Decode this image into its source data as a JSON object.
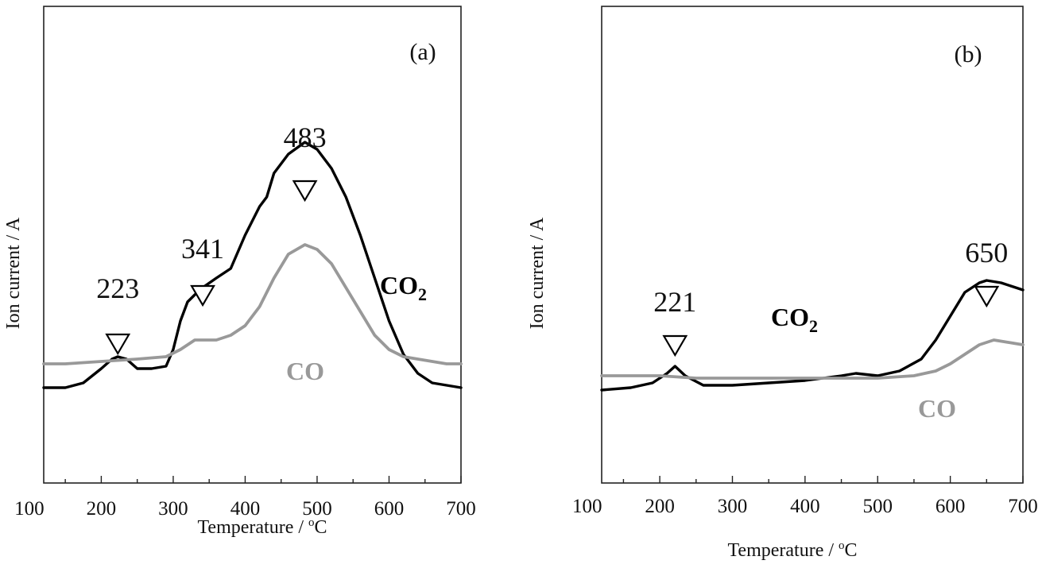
{
  "chart_data": [
    {
      "panel": "(a)",
      "type": "line",
      "xlabel": "Temperature / ",
      "xlabel_sup": "o",
      "xlabel_unit": "C",
      "ylabel": "Ion current / A",
      "xlim": [
        120,
        700
      ],
      "ylim": [
        0,
        1
      ],
      "xticks": [
        100,
        200,
        300,
        400,
        500,
        600,
        700
      ],
      "grid": false,
      "series": [
        {
          "name": "CO2",
          "color": "#000000",
          "x": [
            120,
            150,
            175,
            200,
            215,
            223,
            235,
            250,
            270,
            290,
            300,
            310,
            320,
            330,
            341,
            360,
            380,
            400,
            420,
            430,
            440,
            460,
            483,
            500,
            520,
            540,
            560,
            580,
            600,
            620,
            640,
            660,
            680,
            700
          ],
          "y": [
            0.2,
            0.2,
            0.21,
            0.24,
            0.26,
            0.265,
            0.26,
            0.24,
            0.24,
            0.245,
            0.28,
            0.34,
            0.38,
            0.395,
            0.41,
            0.43,
            0.45,
            0.52,
            0.58,
            0.6,
            0.65,
            0.69,
            0.715,
            0.7,
            0.66,
            0.6,
            0.52,
            0.43,
            0.34,
            0.27,
            0.23,
            0.21,
            0.205,
            0.2
          ]
        },
        {
          "name": "CO",
          "color": "#999999",
          "x": [
            120,
            150,
            200,
            250,
            290,
            310,
            330,
            360,
            380,
            400,
            420,
            440,
            460,
            483,
            500,
            520,
            540,
            560,
            580,
            600,
            620,
            640,
            660,
            680,
            700
          ],
          "y": [
            0.25,
            0.25,
            0.255,
            0.26,
            0.265,
            0.28,
            0.3,
            0.3,
            0.31,
            0.33,
            0.37,
            0.43,
            0.48,
            0.5,
            0.49,
            0.46,
            0.41,
            0.36,
            0.31,
            0.28,
            0.265,
            0.26,
            0.255,
            0.25,
            0.25
          ]
        }
      ],
      "peaks": [
        {
          "x": 223,
          "label": "223"
        },
        {
          "x": 341,
          "label": "341"
        },
        {
          "x": 483,
          "label": "483"
        }
      ],
      "series_labels": {
        "co2_main": "CO",
        "co2_sub": "2",
        "co": "CO"
      }
    },
    {
      "panel": "(b)",
      "type": "line",
      "xlabel": "Temperature / ",
      "xlabel_sup": "o",
      "xlabel_unit": "C",
      "ylabel": "Ion current / A",
      "xlim": [
        120,
        700
      ],
      "ylim": [
        0,
        1
      ],
      "xticks": [
        100,
        200,
        300,
        400,
        500,
        600,
        700
      ],
      "grid": false,
      "series": [
        {
          "name": "CO2",
          "color": "#000000",
          "x": [
            120,
            160,
            190,
            210,
            221,
            235,
            260,
            300,
            350,
            400,
            450,
            470,
            500,
            530,
            560,
            580,
            600,
            620,
            640,
            650,
            670,
            690,
            700
          ],
          "y": [
            0.195,
            0.2,
            0.21,
            0.23,
            0.245,
            0.225,
            0.205,
            0.205,
            0.21,
            0.215,
            0.225,
            0.23,
            0.225,
            0.235,
            0.26,
            0.3,
            0.35,
            0.4,
            0.42,
            0.425,
            0.42,
            0.41,
            0.405
          ]
        },
        {
          "name": "CO",
          "color": "#999999",
          "x": [
            120,
            160,
            200,
            250,
            300,
            350,
            400,
            450,
            500,
            550,
            580,
            600,
            620,
            640,
            660,
            680,
            700
          ],
          "y": [
            0.225,
            0.225,
            0.225,
            0.22,
            0.22,
            0.22,
            0.22,
            0.22,
            0.22,
            0.225,
            0.235,
            0.25,
            0.27,
            0.29,
            0.3,
            0.295,
            0.29
          ]
        }
      ],
      "peaks": [
        {
          "x": 221,
          "label": "221"
        },
        {
          "x": 650,
          "label": "650"
        }
      ],
      "series_labels": {
        "co2_main": "CO",
        "co2_sub": "2",
        "co": "CO"
      }
    }
  ]
}
